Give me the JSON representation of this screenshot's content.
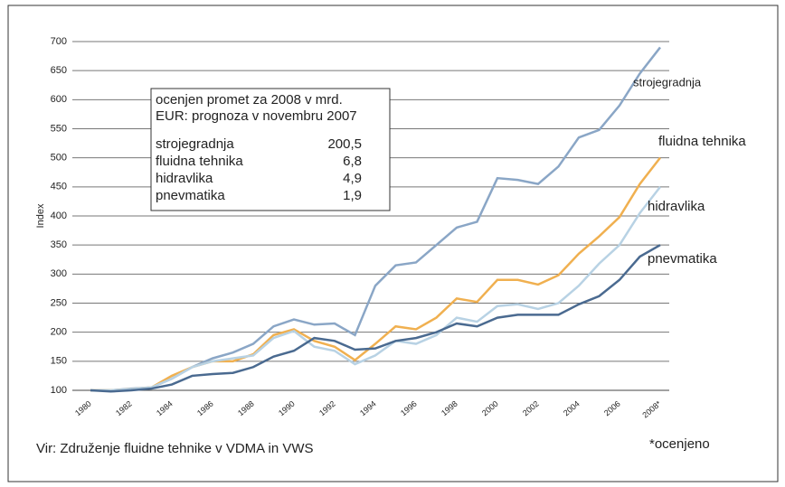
{
  "chart_data": {
    "type": "line",
    "y_label": "Index",
    "categories": [
      "1980",
      null,
      "1982",
      null,
      "1984",
      null,
      "1986",
      null,
      "1988",
      null,
      "1990",
      null,
      "1992",
      null,
      "1994",
      null,
      "1996",
      null,
      "1998",
      null,
      "2000",
      null,
      "2002",
      null,
      "2004",
      null,
      "2006",
      null,
      "2008*"
    ],
    "series": [
      {
        "name": "strojegradnja",
        "color": "#8aa6c6",
        "values": [
          100,
          100,
          103,
          105,
          120,
          140,
          155,
          165,
          180,
          210,
          222,
          213,
          215,
          195,
          280,
          315,
          320,
          350,
          380,
          390,
          465,
          462,
          455,
          485,
          535,
          548,
          590,
          645,
          690
        ]
      },
      {
        "name": "fluidna tehnika",
        "color": "#f0b050",
        "values": [
          100,
          100,
          102,
          105,
          125,
          140,
          150,
          150,
          162,
          195,
          205,
          185,
          175,
          152,
          180,
          210,
          205,
          225,
          258,
          252,
          290,
          290,
          282,
          298,
          335,
          365,
          398,
          455,
          500
        ]
      },
      {
        "name": "hidravlika",
        "color": "#b8d2e4",
        "values": [
          100,
          100,
          102,
          105,
          120,
          140,
          150,
          155,
          160,
          190,
          202,
          175,
          168,
          145,
          160,
          185,
          180,
          195,
          225,
          218,
          245,
          248,
          240,
          250,
          280,
          318,
          350,
          405,
          450
        ]
      },
      {
        "name": "pnevmatika",
        "color": "#4a6a90",
        "values": [
          100,
          98,
          100,
          103,
          110,
          125,
          128,
          130,
          140,
          158,
          168,
          190,
          185,
          170,
          172,
          185,
          190,
          200,
          215,
          210,
          225,
          230,
          230,
          230,
          248,
          262,
          290,
          330,
          350
        ]
      }
    ],
    "ylim": [
      100,
      700
    ],
    "yticks": [
      100,
      150,
      200,
      250,
      300,
      350,
      400,
      450,
      500,
      550,
      600,
      650,
      700
    ],
    "grid": true,
    "info_box": {
      "lines": [
        "ocenjen promet za 2008 v mrd.",
        "EUR: prognoza v novembru 2007"
      ],
      "rows": [
        [
          "strojegradnja",
          "200,5"
        ],
        [
          "fluidna tehnika",
          "6,8"
        ],
        [
          "hidravlika",
          "4,9"
        ],
        [
          "pnevmatika",
          "1,9"
        ]
      ]
    },
    "source": "Vir: Združenje fluidne tehnike v  VDMA in VWS",
    "note": "*ocenjeno"
  }
}
